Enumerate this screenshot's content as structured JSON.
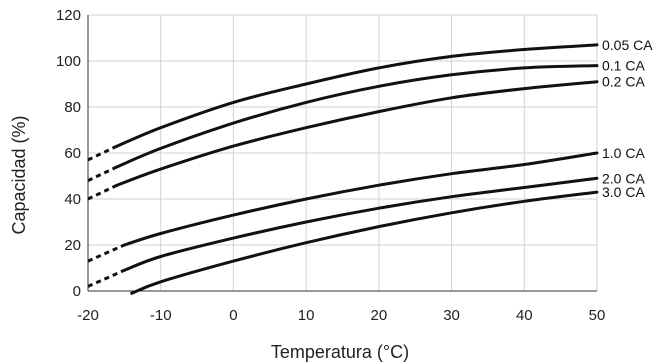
{
  "chart_data": {
    "type": "line",
    "xlabel": "Temperatura (°C)",
    "ylabel": "Capacidad (%)",
    "xlim": [
      -20,
      50
    ],
    "ylim": [
      0,
      120
    ],
    "xticks": [
      -20,
      -10,
      0,
      10,
      20,
      30,
      40,
      50
    ],
    "yticks": [
      0,
      20,
      40,
      60,
      80,
      100,
      120
    ],
    "xtick_labels": [
      "-20",
      "-10",
      "0",
      "10",
      "20",
      "30",
      "40",
      "50"
    ],
    "ytick_labels": [
      "0",
      "20",
      "40",
      "60",
      "80",
      "100",
      "120"
    ],
    "grid": true,
    "series": [
      {
        "name": "0.05 CA",
        "dashed": [
          [
            -20,
            57
          ],
          [
            -16,
            63
          ]
        ],
        "solid": [
          [
            -16,
            63
          ],
          [
            -10,
            71
          ],
          [
            0,
            82
          ],
          [
            10,
            90
          ],
          [
            20,
            97
          ],
          [
            30,
            102
          ],
          [
            40,
            105
          ],
          [
            50,
            107
          ]
        ]
      },
      {
        "name": "0.1 CA",
        "dashed": [
          [
            -20,
            48
          ],
          [
            -16,
            54
          ]
        ],
        "solid": [
          [
            -16,
            54
          ],
          [
            -10,
            62
          ],
          [
            0,
            73
          ],
          [
            10,
            82
          ],
          [
            20,
            89
          ],
          [
            30,
            94
          ],
          [
            40,
            97
          ],
          [
            50,
            98
          ]
        ]
      },
      {
        "name": "0.2 CA",
        "dashed": [
          [
            -20,
            40
          ],
          [
            -16,
            46
          ]
        ],
        "solid": [
          [
            -16,
            46
          ],
          [
            -10,
            53
          ],
          [
            0,
            63
          ],
          [
            10,
            71
          ],
          [
            20,
            78
          ],
          [
            30,
            84
          ],
          [
            40,
            88
          ],
          [
            50,
            91
          ]
        ]
      },
      {
        "name": "1.0 CA",
        "dashed": [
          [
            -20,
            13
          ],
          [
            -15,
            20
          ]
        ],
        "solid": [
          [
            -15,
            20
          ],
          [
            -10,
            25
          ],
          [
            0,
            33
          ],
          [
            10,
            40
          ],
          [
            20,
            46
          ],
          [
            30,
            51
          ],
          [
            40,
            55
          ],
          [
            50,
            60
          ]
        ]
      },
      {
        "name": "2.0 CA",
        "dashed": [
          [
            -20,
            2
          ],
          [
            -15,
            9
          ]
        ],
        "solid": [
          [
            -15,
            9
          ],
          [
            -10,
            15
          ],
          [
            0,
            23
          ],
          [
            10,
            30
          ],
          [
            20,
            36
          ],
          [
            30,
            41
          ],
          [
            40,
            45
          ],
          [
            50,
            49
          ]
        ]
      },
      {
        "name": "3.0 CA",
        "dashed": [],
        "solid": [
          [
            -14,
            -1
          ],
          [
            -10,
            4
          ],
          [
            0,
            13
          ],
          [
            10,
            21
          ],
          [
            20,
            28
          ],
          [
            30,
            34
          ],
          [
            40,
            39
          ],
          [
            50,
            43
          ]
        ]
      }
    ]
  }
}
